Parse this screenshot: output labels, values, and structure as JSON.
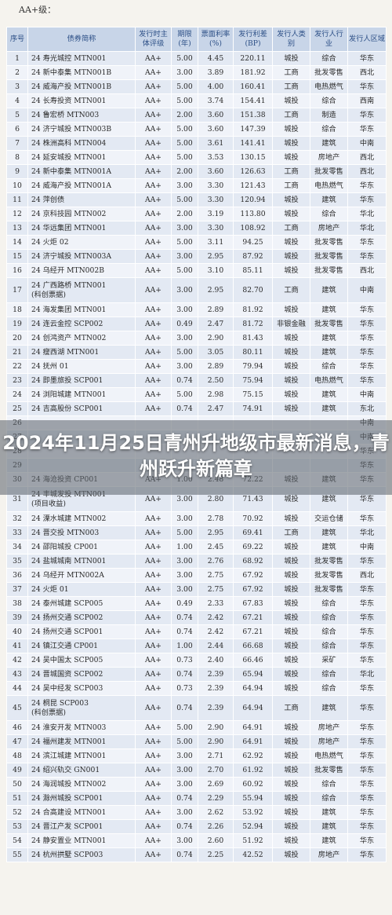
{
  "heading": "AA+级：",
  "columns": [
    "序号",
    "债券简称",
    "发行时主体评级",
    "期限(年)",
    "票面利率(%)",
    "发行利差(BP)",
    "发行人类别",
    "发行人行业",
    "发行人区域"
  ],
  "rows": [
    [
      "1",
      "24 寿光城控 MTN001",
      "AA+",
      "5.00",
      "4.45",
      "220.11",
      "城投",
      "综合",
      "华东"
    ],
    [
      "2",
      "24 新中泰集 MTN001B",
      "AA+",
      "3.00",
      "3.89",
      "181.92",
      "工商",
      "批发零售",
      "西北"
    ],
    [
      "3",
      "24 威海产投 MTN001B",
      "AA+",
      "5.00",
      "4.00",
      "160.41",
      "工商",
      "电热燃气",
      "华东"
    ],
    [
      "4",
      "24 长寿投资 MTN001",
      "AA+",
      "5.00",
      "3.74",
      "154.41",
      "城投",
      "综合",
      "西南"
    ],
    [
      "5",
      "24 鲁宏桥 MTN003",
      "AA+",
      "2.00",
      "3.60",
      "151.38",
      "工商",
      "制造",
      "华东"
    ],
    [
      "6",
      "24 济宁城投 MTN003B",
      "AA+",
      "5.00",
      "3.60",
      "147.39",
      "城投",
      "综合",
      "华东"
    ],
    [
      "7",
      "24 株洲高科 MTN004",
      "AA+",
      "5.00",
      "3.61",
      "141.41",
      "城投",
      "建筑",
      "中南"
    ],
    [
      "8",
      "24 延安城投 MTN001",
      "AA+",
      "5.00",
      "3.53",
      "130.15",
      "城投",
      "房地产",
      "西北"
    ],
    [
      "9",
      "24 新中泰集 MTN001A",
      "AA+",
      "2.00",
      "3.60",
      "126.63",
      "工商",
      "批发零售",
      "西北"
    ],
    [
      "10",
      "24 威海产投 MTN001A",
      "AA+",
      "3.00",
      "3.30",
      "121.43",
      "工商",
      "电热燃气",
      "华东"
    ],
    [
      "11",
      "24 萍创债",
      "AA+",
      "5.00",
      "3.30",
      "120.94",
      "城投",
      "建筑",
      "华东"
    ],
    [
      "12",
      "24 京科技园 MTN002",
      "AA+",
      "2.00",
      "3.19",
      "113.80",
      "城投",
      "综合",
      "华北"
    ],
    [
      "13",
      "24 华远集团 MTN001",
      "AA+",
      "3.00",
      "3.30",
      "108.92",
      "工商",
      "房地产",
      "华北"
    ],
    [
      "14",
      "24 火炬 02",
      "AA+",
      "5.00",
      "3.11",
      "94.25",
      "城投",
      "批发零售",
      "华东"
    ],
    [
      "15",
      "24 济宁城投 MTN003A",
      "AA+",
      "3.00",
      "2.95",
      "87.92",
      "城投",
      "批发零售",
      "华东"
    ],
    [
      "16",
      "24 乌经开 MTN002B",
      "AA+",
      "5.00",
      "3.10",
      "85.11",
      "城投",
      "批发零售",
      "西北"
    ],
    [
      "17",
      "24 广西路桥 MTN001\n(科创票据)",
      "AA+",
      "3.00",
      "2.95",
      "82.70",
      "工商",
      "建筑",
      "中南"
    ],
    [
      "18",
      "24 海发集团 MTN001",
      "AA+",
      "3.00",
      "2.89",
      "81.92",
      "城投",
      "建筑",
      "华东"
    ],
    [
      "19",
      "24 连云金控 SCP002",
      "AA+",
      "0.49",
      "2.47",
      "81.72",
      "非银金融",
      "批发零售",
      "华东"
    ],
    [
      "20",
      "24 创鸿资产 MTN002",
      "AA+",
      "3.00",
      "2.90",
      "81.43",
      "城投",
      "建筑",
      "华东"
    ],
    [
      "21",
      "24 瘦西湖 MTN001",
      "AA+",
      "5.00",
      "3.05",
      "80.11",
      "城投",
      "建筑",
      "华东"
    ],
    [
      "22",
      "24 抚州 01",
      "AA+",
      "3.00",
      "2.89",
      "79.94",
      "城投",
      "综合",
      "华东"
    ],
    [
      "23",
      "24 即墨旅投 SCP001",
      "AA+",
      "0.74",
      "2.50",
      "75.94",
      "城投",
      "电热燃气",
      "华东"
    ],
    [
      "24",
      "24 浏阳城建 MTN001",
      "AA+",
      "5.00",
      "2.98",
      "75.15",
      "城投",
      "建筑",
      "中南"
    ],
    [
      "25",
      "24 吉高股份 SCP001",
      "AA+",
      "0.74",
      "2.47",
      "74.91",
      "城投",
      "建筑",
      "东北"
    ],
    [
      "26",
      "",
      "",
      "",
      "",
      "",
      "",
      "",
      "中南"
    ],
    [
      "27",
      "",
      "",
      "",
      "",
      "",
      "",
      "",
      "中南"
    ],
    [
      "28",
      "",
      "",
      "",
      "",
      "",
      "",
      "",
      "华东"
    ],
    [
      "29",
      "",
      "",
      "",
      "",
      "",
      "",
      "",
      "华东"
    ],
    [
      "30",
      "24 海沧投资 CP001",
      "AA+",
      "1.00",
      "2.48",
      "72.22",
      "城投",
      "建筑",
      "华东"
    ],
    [
      "31",
      "24 丰城发投 MTN001\n(项目收益)",
      "AA+",
      "3.00",
      "2.80",
      "71.43",
      "城投",
      "建筑",
      "华东"
    ],
    [
      "32",
      "24 溧水城建 MTN002",
      "AA+",
      "3.00",
      "2.78",
      "70.92",
      "城投",
      "交运仓储",
      "华东"
    ],
    [
      "33",
      "24 晋交投 MTN003",
      "AA+",
      "5.00",
      "2.95",
      "69.41",
      "工商",
      "建筑",
      "华北"
    ],
    [
      "34",
      "24 邵阳城投 CP001",
      "AA+",
      "1.00",
      "2.45",
      "69.22",
      "城投",
      "建筑",
      "中南"
    ],
    [
      "35",
      "24 盐城城南 MTN001",
      "AA+",
      "3.00",
      "2.76",
      "68.92",
      "城投",
      "批发零售",
      "华东"
    ],
    [
      "36",
      "24 乌经开 MTN002A",
      "AA+",
      "3.00",
      "2.75",
      "67.92",
      "城投",
      "批发零售",
      "西北"
    ],
    [
      "37",
      "24 火炬 01",
      "AA+",
      "3.00",
      "2.75",
      "67.92",
      "城投",
      "批发零售",
      "华东"
    ],
    [
      "38",
      "24 泰州城建 SCP005",
      "AA+",
      "0.49",
      "2.33",
      "67.83",
      "城投",
      "综合",
      "华东"
    ],
    [
      "39",
      "24 扬州交通 SCP002",
      "AA+",
      "0.74",
      "2.42",
      "67.21",
      "城投",
      "综合",
      "华东"
    ],
    [
      "40",
      "24 扬州交通 SCP001",
      "AA+",
      "0.74",
      "2.42",
      "67.21",
      "城投",
      "综合",
      "华东"
    ],
    [
      "41",
      "24 镇江交通 CP001",
      "AA+",
      "1.00",
      "2.44",
      "66.68",
      "城投",
      "综合",
      "华东"
    ],
    [
      "42",
      "24 吴中国太 SCP005",
      "AA+",
      "0.73",
      "2.40",
      "66.46",
      "城投",
      "采矿",
      "华东"
    ],
    [
      "43",
      "24 晋城国资 SCP002",
      "AA+",
      "0.74",
      "2.39",
      "65.94",
      "城投",
      "综合",
      "华北"
    ],
    [
      "44",
      "24 吴中经发 SCP003",
      "AA+",
      "0.73",
      "2.39",
      "64.94",
      "城投",
      "综合",
      "华东"
    ],
    [
      "45",
      "24 桐昆 SCP003\n(科创票据)",
      "AA+",
      "0.74",
      "2.39",
      "64.94",
      "工商",
      "建筑",
      "华东"
    ],
    [
      "46",
      "24 淮安开发 MTN003",
      "AA+",
      "5.00",
      "2.90",
      "64.91",
      "城投",
      "房地产",
      "华东"
    ],
    [
      "47",
      "24 福州建发 MTN001",
      "AA+",
      "5.00",
      "2.90",
      "64.91",
      "城投",
      "房地产",
      "华东"
    ],
    [
      "48",
      "24 滨江城建 MTN001",
      "AA+",
      "3.00",
      "2.71",
      "62.92",
      "城投",
      "电热燃气",
      "华东"
    ],
    [
      "49",
      "24 绍兴轨交 GN001",
      "AA+",
      "3.00",
      "2.70",
      "61.92",
      "城投",
      "批发零售",
      "华东"
    ],
    [
      "50",
      "24 海润城投 MTN002",
      "AA+",
      "3.00",
      "2.69",
      "60.92",
      "城投",
      "综合",
      "华东"
    ],
    [
      "51",
      "24 滁州城投 SCP001",
      "AA+",
      "0.74",
      "2.29",
      "55.94",
      "城投",
      "综合",
      "华东"
    ],
    [
      "52",
      "24 合高建设 MTN001",
      "AA+",
      "3.00",
      "2.62",
      "53.92",
      "城投",
      "建筑",
      "华东"
    ],
    [
      "53",
      "24 晋江产发 SCP001",
      "AA+",
      "0.74",
      "2.26",
      "52.94",
      "城投",
      "建筑",
      "华东"
    ],
    [
      "54",
      "24 静安置业 MTN001",
      "AA+",
      "3.00",
      "2.60",
      "51.92",
      "城投",
      "建筑",
      "华东"
    ],
    [
      "55",
      "24 杭州拱墅 SCP003",
      "AA+",
      "0.74",
      "2.25",
      "42.52",
      "城投",
      "房地产",
      "华东"
    ]
  ],
  "overlay_title": "2024年11月25日青州升地级市最新消息，青州跃升新篇章"
}
